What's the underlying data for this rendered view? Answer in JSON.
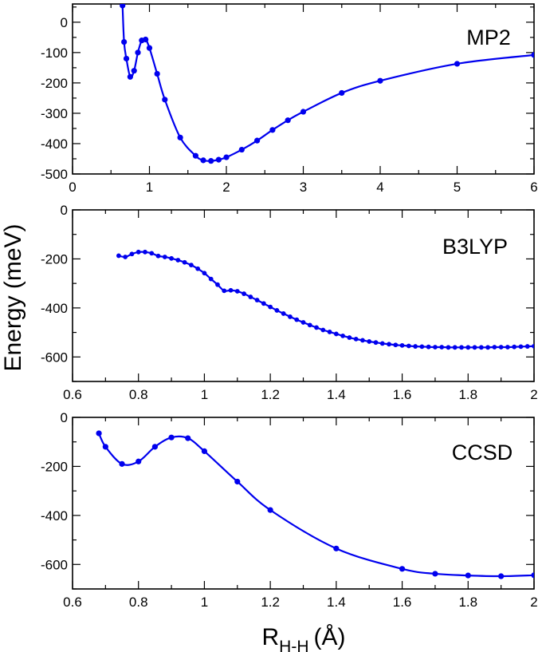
{
  "chart_data": [
    {
      "type": "line",
      "label": "MP2",
      "xlim": [
        0,
        6
      ],
      "ylim": [
        -500,
        60
      ],
      "xticks": [
        0,
        1,
        2,
        3,
        4,
        5,
        6
      ],
      "xtick_labels": [
        "0",
        "1",
        "2",
        "3",
        "4",
        "5",
        "6"
      ],
      "yticks": [
        0,
        -100,
        -200,
        -300,
        -400,
        -500
      ],
      "ytick_labels": [
        "0",
        "-100",
        "-200",
        "-300",
        "-400",
        "-500"
      ],
      "x": [
        0.65,
        0.67,
        0.7,
        0.75,
        0.8,
        0.85,
        0.9,
        0.95,
        1.0,
        1.1,
        1.2,
        1.4,
        1.6,
        1.7,
        1.8,
        1.9,
        2.0,
        2.2,
        2.4,
        2.6,
        2.8,
        3.0,
        3.5,
        4.0,
        5.0,
        6.0
      ],
      "y": [
        55,
        -65,
        -120,
        -180,
        -160,
        -100,
        -60,
        -57,
        -85,
        -170,
        -255,
        -380,
        -440,
        -455,
        -457,
        -453,
        -445,
        -420,
        -390,
        -355,
        -323,
        -295,
        -233,
        -193,
        -137,
        -108
      ]
    },
    {
      "type": "line",
      "label": "B3LYP",
      "xlim": [
        0.6,
        2.0
      ],
      "ylim": [
        -700,
        0
      ],
      "xticks": [
        0.6,
        0.8,
        1.0,
        1.2,
        1.4,
        1.6,
        1.8,
        2.0
      ],
      "xtick_labels": [
        "0.6",
        "0.8",
        "1",
        "1.2",
        "1.4",
        "1.6",
        "1.8",
        "2"
      ],
      "yticks": [
        0,
        -200,
        -400,
        -600
      ],
      "ytick_labels": [
        "0",
        "-200",
        "-400",
        "-600"
      ],
      "x": [
        0.74,
        0.76,
        0.78,
        0.8,
        0.82,
        0.84,
        0.86,
        0.88,
        0.9,
        0.92,
        0.94,
        0.96,
        0.98,
        1.0,
        1.02,
        1.04,
        1.06,
        1.08,
        1.1,
        1.12,
        1.14,
        1.16,
        1.18,
        1.2,
        1.22,
        1.24,
        1.26,
        1.28,
        1.3,
        1.32,
        1.34,
        1.36,
        1.38,
        1.4,
        1.42,
        1.44,
        1.46,
        1.48,
        1.5,
        1.52,
        1.54,
        1.56,
        1.58,
        1.6,
        1.62,
        1.64,
        1.66,
        1.68,
        1.7,
        1.72,
        1.74,
        1.76,
        1.78,
        1.8,
        1.82,
        1.84,
        1.86,
        1.88,
        1.9,
        1.92,
        1.94,
        1.96,
        1.98,
        2.0
      ],
      "y": [
        -187,
        -192,
        -180,
        -172,
        -172,
        -177,
        -188,
        -192,
        -198,
        -205,
        -214,
        -225,
        -240,
        -258,
        -282,
        -305,
        -330,
        -328,
        -332,
        -342,
        -355,
        -368,
        -382,
        -396,
        -410,
        -423,
        -436,
        -448,
        -459,
        -470,
        -480,
        -490,
        -498,
        -506,
        -514,
        -521,
        -527,
        -532,
        -537,
        -541,
        -545,
        -548,
        -551,
        -553,
        -555,
        -557,
        -558,
        -559,
        -560,
        -560,
        -561,
        -561,
        -561,
        -561,
        -561,
        -561,
        -561,
        -560,
        -560,
        -560,
        -559,
        -558,
        -557,
        -556
      ]
    },
    {
      "type": "line",
      "label": "CCSD",
      "xlim": [
        0.6,
        2.0
      ],
      "ylim": [
        -700,
        0
      ],
      "xticks": [
        0.6,
        0.8,
        1.0,
        1.2,
        1.4,
        1.6,
        1.8,
        2.0
      ],
      "xtick_labels": [
        "0.6",
        "0.8",
        "1",
        "1.2",
        "1.4",
        "1.6",
        "1.8",
        "2"
      ],
      "yticks": [
        0,
        -200,
        -400,
        -600
      ],
      "ytick_labels": [
        "0",
        "-200",
        "-400",
        "-600"
      ],
      "x": [
        0.68,
        0.7,
        0.75,
        0.8,
        0.85,
        0.9,
        0.95,
        1.0,
        1.1,
        1.2,
        1.4,
        1.6,
        1.7,
        1.8,
        1.9,
        2.0
      ],
      "y": [
        -65,
        -120,
        -190,
        -180,
        -120,
        -82,
        -85,
        -138,
        -262,
        -378,
        -535,
        -618,
        -638,
        -645,
        -648,
        -644
      ]
    }
  ],
  "ylabel": "Energy (meV)",
  "xlabel_main": "R",
  "xlabel_sub": "H-H",
  "xlabel_unit": "(Å)"
}
